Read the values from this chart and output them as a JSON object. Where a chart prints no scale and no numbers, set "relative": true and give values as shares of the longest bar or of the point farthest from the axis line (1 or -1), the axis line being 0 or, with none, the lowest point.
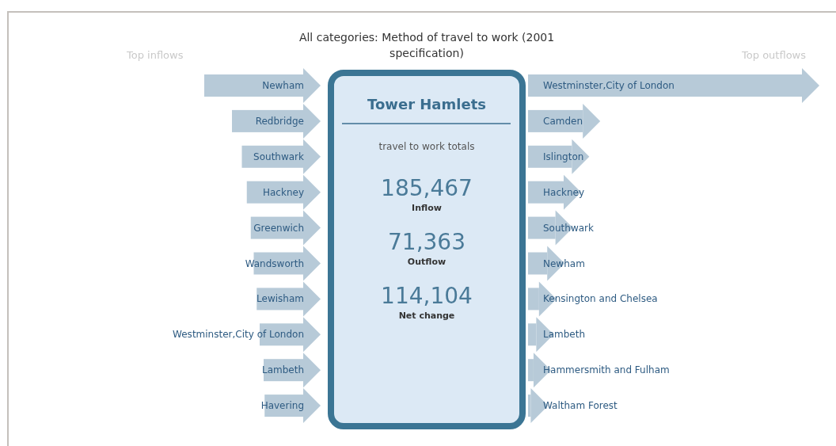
{
  "chart_data": [
    {
      "type": "bar",
      "orientation": "horizontal",
      "relative": true,
      "title": "Top inflows",
      "color": "#b7cad8",
      "categories": [
        "Newham",
        "Redbridge",
        "Southwark",
        "Hackney",
        "Greenwich",
        "Wandsworth",
        "Lewisham",
        "Westminster,City of London",
        "Lambeth",
        "Havering"
      ],
      "values": [
        1,
        0.72,
        0.62,
        0.57,
        0.53,
        0.5,
        0.47,
        0.44,
        0.4,
        0.39
      ]
    },
    {
      "type": "other",
      "title": "All categories: Method of travel to work (2001 specification)",
      "subtitle": "Tower Hamlets",
      "annotations": [
        "travel to work totals",
        "185,467",
        "Inflow",
        "71,363",
        "Outflow",
        "114,104",
        "Net change"
      ]
    },
    {
      "type": "bar",
      "orientation": "horizontal",
      "relative": true,
      "title": "Top outflows",
      "color": "#b7cad8",
      "categories": [
        "Westminster,City of London",
        "Camden",
        "Islington",
        "Hackney",
        "Southwark",
        "Newham",
        "Kensington and Chelsea",
        "Lambeth",
        "Hammersmith and Fulham",
        "Waltham Forest"
      ],
      "values": [
        1,
        0.2,
        0.16,
        0.13,
        0.1,
        0.07,
        0.04,
        0.03,
        0.02,
        0.01
      ]
    }
  ]
}
